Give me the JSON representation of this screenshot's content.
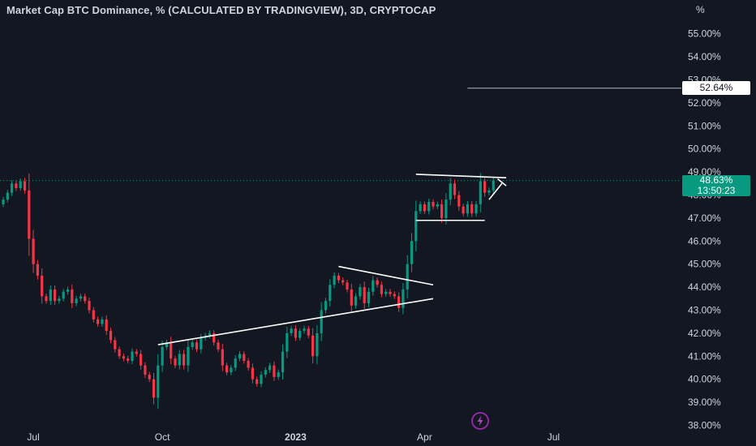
{
  "header": {
    "title": "Market Cap BTC Dominance, % (CALCULATED BY TRADINGVIEW), 3D, CRYPTOCAP",
    "unit": "%"
  },
  "price_tags": {
    "level": "52.64%",
    "current": "48.63%",
    "countdown": "13:50:23"
  },
  "colors": {
    "background": "#131722",
    "up": "#089981",
    "down": "#f23645",
    "line": "#ffffff",
    "accent": "#9c27b0"
  },
  "icons": {
    "bolt": "lightning-bolt-icon"
  },
  "chart_data": {
    "type": "candlestick",
    "title": "Market Cap BTC Dominance, % (CALCULATED BY TRADINGVIEW), 3D, CRYPTOCAP",
    "ylabel": "%",
    "ylim": [
      38.0,
      56.0
    ],
    "y_ticks": [
      "38.00%",
      "39.00%",
      "40.00%",
      "41.00%",
      "42.00%",
      "43.00%",
      "44.00%",
      "45.00%",
      "46.00%",
      "47.00%",
      "48.00%",
      "49.00%",
      "50.00%",
      "51.00%",
      "52.00%",
      "53.00%",
      "54.00%",
      "55.00%"
    ],
    "x_ticks": [
      {
        "label": "Jul",
        "bar": 7
      },
      {
        "label": "Oct",
        "bar": 37
      },
      {
        "label": "2023",
        "bar": 68,
        "bold": true
      },
      {
        "label": "Apr",
        "bar": 98
      },
      {
        "label": "Jul",
        "bar": 128
      }
    ],
    "grid": false,
    "close": [
      47.8,
      48.1,
      48.5,
      48.3,
      48.6,
      48.2,
      46.1,
      45.0,
      44.5,
      43.6,
      43.4,
      43.9,
      43.4,
      43.5,
      43.8,
      43.9,
      43.3,
      43.5,
      43.6,
      43.4,
      43.0,
      42.6,
      42.4,
      42.6,
      42.1,
      41.7,
      41.3,
      41.0,
      40.9,
      40.8,
      41.2,
      41.1,
      40.6,
      40.2,
      40.0,
      39.2,
      40.6,
      41.4,
      41.6,
      40.9,
      40.6,
      41.1,
      40.6,
      41.4,
      41.6,
      41.3,
      41.8,
      41.9,
      42.0,
      41.6,
      41.3,
      40.6,
      40.3,
      40.5,
      40.9,
      41.1,
      40.8,
      40.5,
      40.0,
      39.8,
      40.2,
      40.4,
      40.6,
      40.1,
      40.3,
      41.2,
      42.0,
      42.2,
      41.8,
      42.1,
      42.2,
      41.9,
      41.0,
      42.0,
      43.0,
      43.4,
      44.1,
      44.5,
      44.3,
      44.2,
      43.9,
      43.2,
      43.6,
      44.0,
      43.3,
      43.8,
      44.3,
      44.1,
      43.7,
      43.8,
      43.7,
      43.6,
      43.1,
      43.9,
      45.0,
      46.0,
      47.3,
      47.6,
      47.3,
      47.7,
      47.5,
      47.6,
      47.0,
      47.8,
      48.5,
      48.0,
      47.5,
      47.2,
      47.6,
      47.2,
      47.6,
      48.6,
      48.1,
      48.2,
      48.63
    ],
    "annotations": [
      {
        "type": "trendline",
        "from": [
          36,
          41.5
        ],
        "to": [
          100,
          43.5
        ]
      },
      {
        "type": "trendline",
        "from": [
          78,
          44.9
        ],
        "to": [
          100,
          44.1
        ]
      },
      {
        "type": "trendline",
        "from": [
          96,
          46.9
        ],
        "to": [
          112,
          46.9
        ]
      },
      {
        "type": "trendline",
        "from": [
          96,
          48.9
        ],
        "to": [
          117,
          48.75
        ]
      },
      {
        "type": "trendline",
        "from": [
          113,
          47.8
        ],
        "to": [
          116,
          48.5
        ]
      },
      {
        "type": "trendline",
        "from": [
          115,
          48.7
        ],
        "to": [
          117,
          48.4
        ]
      },
      {
        "type": "horizontal_ray",
        "from_bar": 108,
        "value": 52.64
      }
    ],
    "last_value": 48.63
  }
}
